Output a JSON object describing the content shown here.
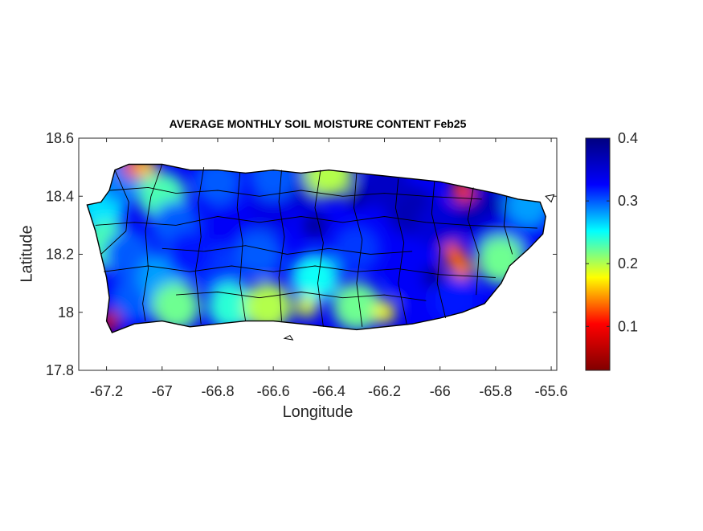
{
  "title": "AVERAGE MONTHLY SOIL MOISTURE CONTENT Feb25",
  "colors": {
    "colormap": [
      "#800000",
      "#ff0000",
      "#ffff00",
      "#00ffff",
      "#0000ff",
      "#000080"
    ],
    "boundary": "#000000"
  },
  "chart_data": {
    "type": "heatmap",
    "title": "AVERAGE MONTHLY SOIL MOISTURE CONTENT Feb25",
    "xlabel": "Longitude",
    "ylabel": "Latitude",
    "xlim": [
      -67.3,
      -65.58
    ],
    "ylim": [
      17.8,
      18.6
    ],
    "xticks": [
      -67.2,
      -67,
      -66.8,
      -66.6,
      -66.4,
      -66.2,
      -66,
      -65.8,
      -65.6
    ],
    "xtick_labels": [
      "-67.2",
      "-67",
      "-66.8",
      "-66.6",
      "-66.4",
      "-66.2",
      "-66",
      "-65.8",
      "-65.6"
    ],
    "yticks": [
      17.8,
      18,
      18.2,
      18.4,
      18.6
    ],
    "ytick_labels": [
      "17.8",
      "18",
      "18.2",
      "18.4",
      "18.6"
    ],
    "colorbar": {
      "range": [
        0.03,
        0.4
      ],
      "ticks": [
        0.1,
        0.2,
        0.3,
        0.4
      ],
      "tick_labels": [
        "0.1",
        "0.2",
        "0.3",
        "0.4"
      ],
      "colormap": "jet"
    },
    "island_outline": [
      [
        -67.27,
        18.37
      ],
      [
        -67.22,
        18.38
      ],
      [
        -67.19,
        18.42
      ],
      [
        -67.17,
        18.49
      ],
      [
        -67.12,
        18.51
      ],
      [
        -67.0,
        18.51
      ],
      [
        -66.9,
        18.49
      ],
      [
        -66.8,
        18.49
      ],
      [
        -66.7,
        18.48
      ],
      [
        -66.6,
        18.49
      ],
      [
        -66.5,
        18.48
      ],
      [
        -66.4,
        18.49
      ],
      [
        -66.3,
        18.48
      ],
      [
        -66.2,
        18.47
      ],
      [
        -66.1,
        18.46
      ],
      [
        -66.0,
        18.45
      ],
      [
        -65.9,
        18.43
      ],
      [
        -65.8,
        18.41
      ],
      [
        -65.72,
        18.39
      ],
      [
        -65.64,
        18.38
      ],
      [
        -65.62,
        18.33
      ],
      [
        -65.63,
        18.27
      ],
      [
        -65.68,
        18.22
      ],
      [
        -65.75,
        18.16
      ],
      [
        -65.78,
        18.1
      ],
      [
        -65.84,
        18.03
      ],
      [
        -65.92,
        18.0
      ],
      [
        -66.0,
        17.98
      ],
      [
        -66.1,
        17.96
      ],
      [
        -66.2,
        17.95
      ],
      [
        -66.3,
        17.94
      ],
      [
        -66.4,
        17.95
      ],
      [
        -66.5,
        17.96
      ],
      [
        -66.6,
        17.97
      ],
      [
        -66.7,
        17.97
      ],
      [
        -66.8,
        17.96
      ],
      [
        -66.9,
        17.95
      ],
      [
        -67.0,
        17.97
      ],
      [
        -67.1,
        17.96
      ],
      [
        -67.18,
        17.93
      ],
      [
        -67.2,
        17.97
      ],
      [
        -67.19,
        18.05
      ],
      [
        -67.2,
        18.12
      ],
      [
        -67.22,
        18.2
      ],
      [
        -67.24,
        18.28
      ],
      [
        -67.27,
        18.37
      ]
    ],
    "small_islands": [
      [
        [
          -66.56,
          17.91
        ],
        [
          -66.53,
          17.905
        ],
        [
          -66.54,
          17.92
        ],
        [
          -66.56,
          17.91
        ]
      ],
      [
        [
          -65.62,
          18.4
        ],
        [
          -65.59,
          18.405
        ],
        [
          -65.6,
          18.38
        ],
        [
          -65.62,
          18.4
        ]
      ]
    ],
    "municipal_boundaries": [
      [
        [
          -67.17,
          18.49
        ],
        [
          -67.12,
          18.38
        ],
        [
          -67.13,
          18.28
        ],
        [
          -67.22,
          18.2
        ]
      ],
      [
        [
          -67.0,
          18.51
        ],
        [
          -67.04,
          18.4
        ],
        [
          -67.06,
          18.28
        ],
        [
          -67.05,
          18.15
        ],
        [
          -67.07,
          18.03
        ],
        [
          -67.06,
          17.97
        ]
      ],
      [
        [
          -66.85,
          18.5
        ],
        [
          -66.87,
          18.38
        ],
        [
          -66.86,
          18.26
        ],
        [
          -66.88,
          18.14
        ],
        [
          -66.86,
          17.96
        ]
      ],
      [
        [
          -66.72,
          18.48
        ],
        [
          -66.73,
          18.36
        ],
        [
          -66.71,
          18.24
        ],
        [
          -66.72,
          18.1
        ],
        [
          -66.7,
          17.97
        ]
      ],
      [
        [
          -66.57,
          18.49
        ],
        [
          -66.58,
          18.38
        ],
        [
          -66.56,
          18.26
        ],
        [
          -66.58,
          18.12
        ],
        [
          -66.57,
          17.97
        ]
      ],
      [
        [
          -66.43,
          18.49
        ],
        [
          -66.45,
          18.36
        ],
        [
          -66.42,
          18.24
        ],
        [
          -66.44,
          18.1
        ],
        [
          -66.42,
          17.95
        ]
      ],
      [
        [
          -66.3,
          18.48
        ],
        [
          -66.31,
          18.36
        ],
        [
          -66.28,
          18.25
        ],
        [
          -66.3,
          18.1
        ],
        [
          -66.28,
          17.95
        ]
      ],
      [
        [
          -66.15,
          18.46
        ],
        [
          -66.16,
          18.36
        ],
        [
          -66.13,
          18.24
        ],
        [
          -66.15,
          18.1
        ],
        [
          -66.12,
          17.96
        ]
      ],
      [
        [
          -66.02,
          18.45
        ],
        [
          -66.03,
          18.34
        ],
        [
          -66.0,
          18.22
        ],
        [
          -66.01,
          18.1
        ],
        [
          -65.98,
          17.98
        ]
      ],
      [
        [
          -65.88,
          18.43
        ],
        [
          -65.9,
          18.32
        ],
        [
          -65.86,
          18.2
        ],
        [
          -65.87,
          18.06
        ]
      ],
      [
        [
          -65.76,
          18.4
        ],
        [
          -65.77,
          18.3
        ],
        [
          -65.74,
          18.2
        ]
      ],
      [
        [
          -67.24,
          18.3
        ],
        [
          -67.1,
          18.31
        ],
        [
          -66.95,
          18.3
        ],
        [
          -66.8,
          18.33
        ],
        [
          -66.65,
          18.31
        ],
        [
          -66.5,
          18.33
        ],
        [
          -66.35,
          18.31
        ],
        [
          -66.2,
          18.33
        ],
        [
          -66.05,
          18.31
        ],
        [
          -65.9,
          18.3
        ],
        [
          -65.65,
          18.29
        ]
      ],
      [
        [
          -67.21,
          18.14
        ],
        [
          -67.05,
          18.16
        ],
        [
          -66.9,
          18.14
        ],
        [
          -66.75,
          18.16
        ],
        [
          -66.6,
          18.14
        ],
        [
          -66.45,
          18.16
        ],
        [
          -66.3,
          18.14
        ],
        [
          -66.15,
          18.15
        ],
        [
          -66.0,
          18.13
        ],
        [
          -65.8,
          18.12
        ]
      ],
      [
        [
          -67.19,
          18.42
        ],
        [
          -67.05,
          18.43
        ],
        [
          -66.95,
          18.41
        ],
        [
          -66.8,
          18.42
        ],
        [
          -66.65,
          18.4
        ],
        [
          -66.5,
          18.42
        ],
        [
          -66.35,
          18.4
        ],
        [
          -66.2,
          18.41
        ],
        [
          -66.05,
          18.4
        ],
        [
          -65.85,
          18.39
        ]
      ],
      [
        [
          -67.0,
          18.22
        ],
        [
          -66.85,
          18.21
        ],
        [
          -66.7,
          18.23
        ],
        [
          -66.55,
          18.2
        ],
        [
          -66.4,
          18.22
        ],
        [
          -66.25,
          18.2
        ],
        [
          -66.1,
          18.21
        ]
      ],
      [
        [
          -66.95,
          18.06
        ],
        [
          -66.8,
          18.07
        ],
        [
          -66.65,
          18.05
        ],
        [
          -66.5,
          18.07
        ],
        [
          -66.35,
          18.05
        ],
        [
          -66.2,
          18.06
        ],
        [
          -66.05,
          18.04
        ]
      ]
    ],
    "moisture_field_samples": [
      {
        "lon": -67.22,
        "lat": 18.36,
        "value": 0.26
      },
      {
        "lon": -67.15,
        "lat": 18.46,
        "value": 0.29
      },
      {
        "lon": -67.1,
        "lat": 18.5,
        "value": 0.1
      },
      {
        "lon": -67.06,
        "lat": 18.5,
        "value": 0.16
      },
      {
        "lon": -67.2,
        "lat": 18.23,
        "value": 0.23
      },
      {
        "lon": -67.12,
        "lat": 18.2,
        "value": 0.3
      },
      {
        "lon": -67.19,
        "lat": 17.97,
        "value": 0.07
      },
      {
        "lon": -67.1,
        "lat": 18.05,
        "value": 0.3
      },
      {
        "lon": -67.0,
        "lat": 18.4,
        "value": 0.23
      },
      {
        "lon": -66.95,
        "lat": 18.3,
        "value": 0.3
      },
      {
        "lon": -67.0,
        "lat": 18.12,
        "value": 0.28
      },
      {
        "lon": -66.95,
        "lat": 18.02,
        "value": 0.22
      },
      {
        "lon": -66.8,
        "lat": 18.45,
        "value": 0.3
      },
      {
        "lon": -66.75,
        "lat": 18.3,
        "value": 0.33
      },
      {
        "lon": -66.8,
        "lat": 18.15,
        "value": 0.31
      },
      {
        "lon": -66.75,
        "lat": 18.02,
        "value": 0.24
      },
      {
        "lon": -66.65,
        "lat": 18.2,
        "value": 0.3
      },
      {
        "lon": -66.62,
        "lat": 18.02,
        "value": 0.2
      },
      {
        "lon": -66.5,
        "lat": 18.44,
        "value": 0.36
      },
      {
        "lon": -66.45,
        "lat": 18.3,
        "value": 0.39
      },
      {
        "lon": -66.45,
        "lat": 18.12,
        "value": 0.25
      },
      {
        "lon": -66.48,
        "lat": 18.02,
        "value": 0.19
      },
      {
        "lon": -66.3,
        "lat": 18.4,
        "value": 0.39
      },
      {
        "lon": -66.3,
        "lat": 18.22,
        "value": 0.31
      },
      {
        "lon": -66.3,
        "lat": 18.02,
        "value": 0.22
      },
      {
        "lon": -66.2,
        "lat": 18.0,
        "value": 0.18
      },
      {
        "lon": -66.1,
        "lat": 18.35,
        "value": 0.37
      },
      {
        "lon": -66.1,
        "lat": 18.12,
        "value": 0.33
      },
      {
        "lon": -66.02,
        "lat": 18.12,
        "value": 0.4
      },
      {
        "lon": -66.0,
        "lat": 18.3,
        "value": 0.35
      },
      {
        "lon": -65.95,
        "lat": 18.2,
        "value": 0.13
      },
      {
        "lon": -65.92,
        "lat": 18.15,
        "value": 0.14
      },
      {
        "lon": -65.95,
        "lat": 18.04,
        "value": 0.32
      },
      {
        "lon": -65.85,
        "lat": 18.35,
        "value": 0.37
      },
      {
        "lon": -65.8,
        "lat": 18.25,
        "value": 0.34
      },
      {
        "lon": -65.7,
        "lat": 18.3,
        "value": 0.33
      },
      {
        "lon": -65.68,
        "lat": 18.38,
        "value": 0.28
      },
      {
        "lon": -65.92,
        "lat": 18.42,
        "value": 0.12
      },
      {
        "lon": -65.78,
        "lat": 18.18,
        "value": 0.22
      },
      {
        "lon": -66.4,
        "lat": 18.48,
        "value": 0.2
      },
      {
        "lon": -66.9,
        "lat": 18.2,
        "value": 0.32
      },
      {
        "lon": -66.6,
        "lat": 18.36,
        "value": 0.34
      },
      {
        "lon": -66.2,
        "lat": 18.44,
        "value": 0.36
      },
      {
        "lon": -66.6,
        "lat": 18.47,
        "value": 0.3
      }
    ]
  }
}
